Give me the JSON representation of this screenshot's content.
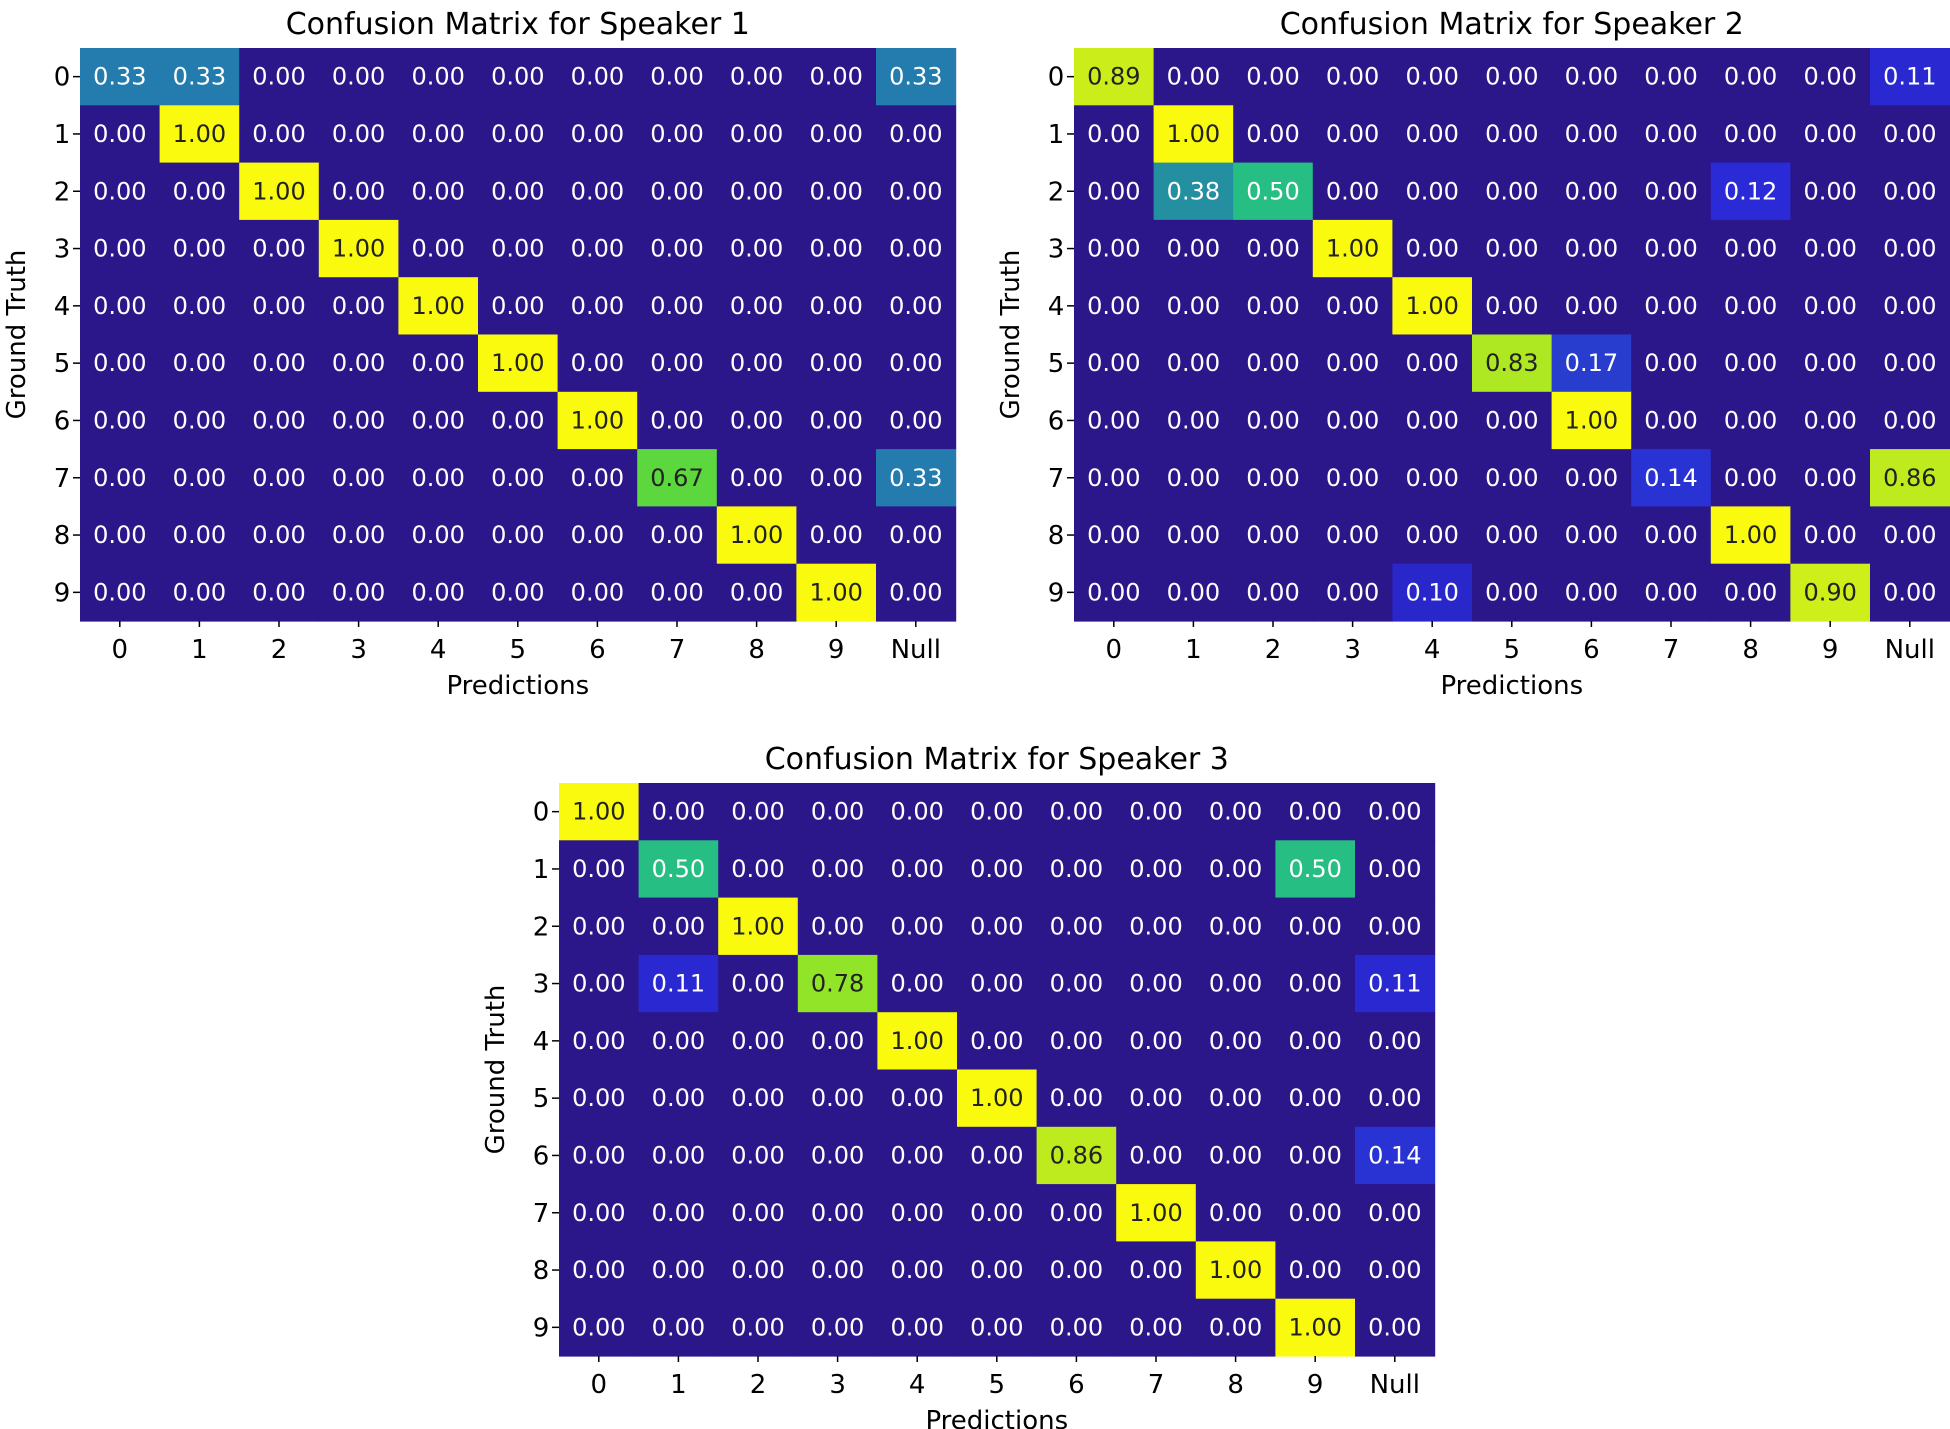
{
  "chart_data": [
    {
      "type": "heatmap",
      "title": "Confusion Matrix for Speaker 1",
      "xlabel": "Predictions",
      "ylabel": "Ground Truth",
      "x_categories": [
        "0",
        "1",
        "2",
        "3",
        "4",
        "5",
        "6",
        "7",
        "8",
        "9",
        "Null"
      ],
      "y_categories": [
        "0",
        "1",
        "2",
        "3",
        "4",
        "5",
        "6",
        "7",
        "8",
        "9"
      ],
      "colormap": "plasma-like (dark blue to yellow)",
      "value_range": [
        0,
        1
      ],
      "values": [
        [
          0.33,
          0.33,
          0.0,
          0.0,
          0.0,
          0.0,
          0.0,
          0.0,
          0.0,
          0.0,
          0.33
        ],
        [
          0.0,
          1.0,
          0.0,
          0.0,
          0.0,
          0.0,
          0.0,
          0.0,
          0.0,
          0.0,
          0.0
        ],
        [
          0.0,
          0.0,
          1.0,
          0.0,
          0.0,
          0.0,
          0.0,
          0.0,
          0.0,
          0.0,
          0.0
        ],
        [
          0.0,
          0.0,
          0.0,
          1.0,
          0.0,
          0.0,
          0.0,
          0.0,
          0.0,
          0.0,
          0.0
        ],
        [
          0.0,
          0.0,
          0.0,
          0.0,
          1.0,
          0.0,
          0.0,
          0.0,
          0.0,
          0.0,
          0.0
        ],
        [
          0.0,
          0.0,
          0.0,
          0.0,
          0.0,
          1.0,
          0.0,
          0.0,
          0.0,
          0.0,
          0.0
        ],
        [
          0.0,
          0.0,
          0.0,
          0.0,
          0.0,
          0.0,
          1.0,
          0.0,
          0.0,
          0.0,
          0.0
        ],
        [
          0.0,
          0.0,
          0.0,
          0.0,
          0.0,
          0.0,
          0.0,
          0.67,
          0.0,
          0.0,
          0.33
        ],
        [
          0.0,
          0.0,
          0.0,
          0.0,
          0.0,
          0.0,
          0.0,
          0.0,
          1.0,
          0.0,
          0.0
        ],
        [
          0.0,
          0.0,
          0.0,
          0.0,
          0.0,
          0.0,
          0.0,
          0.0,
          0.0,
          1.0,
          0.0
        ]
      ]
    },
    {
      "type": "heatmap",
      "title": "Confusion Matrix for Speaker 2",
      "xlabel": "Predictions",
      "ylabel": "Ground Truth",
      "x_categories": [
        "0",
        "1",
        "2",
        "3",
        "4",
        "5",
        "6",
        "7",
        "8",
        "9",
        "Null"
      ],
      "y_categories": [
        "0",
        "1",
        "2",
        "3",
        "4",
        "5",
        "6",
        "7",
        "8",
        "9"
      ],
      "colormap": "plasma-like (dark blue to yellow)",
      "value_range": [
        0,
        1
      ],
      "values": [
        [
          0.89,
          0.0,
          0.0,
          0.0,
          0.0,
          0.0,
          0.0,
          0.0,
          0.0,
          0.0,
          0.11
        ],
        [
          0.0,
          1.0,
          0.0,
          0.0,
          0.0,
          0.0,
          0.0,
          0.0,
          0.0,
          0.0,
          0.0
        ],
        [
          0.0,
          0.38,
          0.5,
          0.0,
          0.0,
          0.0,
          0.0,
          0.0,
          0.12,
          0.0,
          0.0
        ],
        [
          0.0,
          0.0,
          0.0,
          1.0,
          0.0,
          0.0,
          0.0,
          0.0,
          0.0,
          0.0,
          0.0
        ],
        [
          0.0,
          0.0,
          0.0,
          0.0,
          1.0,
          0.0,
          0.0,
          0.0,
          0.0,
          0.0,
          0.0
        ],
        [
          0.0,
          0.0,
          0.0,
          0.0,
          0.0,
          0.83,
          0.17,
          0.0,
          0.0,
          0.0,
          0.0
        ],
        [
          0.0,
          0.0,
          0.0,
          0.0,
          0.0,
          0.0,
          1.0,
          0.0,
          0.0,
          0.0,
          0.0
        ],
        [
          0.0,
          0.0,
          0.0,
          0.0,
          0.0,
          0.0,
          0.0,
          0.14,
          0.0,
          0.0,
          0.86
        ],
        [
          0.0,
          0.0,
          0.0,
          0.0,
          0.0,
          0.0,
          0.0,
          0.0,
          1.0,
          0.0,
          0.0
        ],
        [
          0.0,
          0.0,
          0.0,
          0.0,
          0.1,
          0.0,
          0.0,
          0.0,
          0.0,
          0.9,
          0.0
        ]
      ]
    },
    {
      "type": "heatmap",
      "title": "Confusion Matrix for Speaker 3",
      "xlabel": "Predictions",
      "ylabel": "Ground Truth",
      "x_categories": [
        "0",
        "1",
        "2",
        "3",
        "4",
        "5",
        "6",
        "7",
        "8",
        "9",
        "Null"
      ],
      "y_categories": [
        "0",
        "1",
        "2",
        "3",
        "4",
        "5",
        "6",
        "7",
        "8",
        "9"
      ],
      "colormap": "plasma-like (dark blue to yellow)",
      "value_range": [
        0,
        1
      ],
      "values": [
        [
          1.0,
          0.0,
          0.0,
          0.0,
          0.0,
          0.0,
          0.0,
          0.0,
          0.0,
          0.0,
          0.0
        ],
        [
          0.0,
          0.5,
          0.0,
          0.0,
          0.0,
          0.0,
          0.0,
          0.0,
          0.0,
          0.5,
          0.0
        ],
        [
          0.0,
          0.0,
          1.0,
          0.0,
          0.0,
          0.0,
          0.0,
          0.0,
          0.0,
          0.0,
          0.0
        ],
        [
          0.0,
          0.11,
          0.0,
          0.78,
          0.0,
          0.0,
          0.0,
          0.0,
          0.0,
          0.0,
          0.11
        ],
        [
          0.0,
          0.0,
          0.0,
          0.0,
          1.0,
          0.0,
          0.0,
          0.0,
          0.0,
          0.0,
          0.0
        ],
        [
          0.0,
          0.0,
          0.0,
          0.0,
          0.0,
          1.0,
          0.0,
          0.0,
          0.0,
          0.0,
          0.0
        ],
        [
          0.0,
          0.0,
          0.0,
          0.0,
          0.0,
          0.0,
          0.86,
          0.0,
          0.0,
          0.0,
          0.14
        ],
        [
          0.0,
          0.0,
          0.0,
          0.0,
          0.0,
          0.0,
          0.0,
          1.0,
          0.0,
          0.0,
          0.0
        ],
        [
          0.0,
          0.0,
          0.0,
          0.0,
          0.0,
          0.0,
          0.0,
          0.0,
          1.0,
          0.0,
          0.0
        ],
        [
          0.0,
          0.0,
          0.0,
          0.0,
          0.0,
          0.0,
          0.0,
          0.0,
          0.0,
          1.0,
          0.0
        ]
      ]
    }
  ]
}
